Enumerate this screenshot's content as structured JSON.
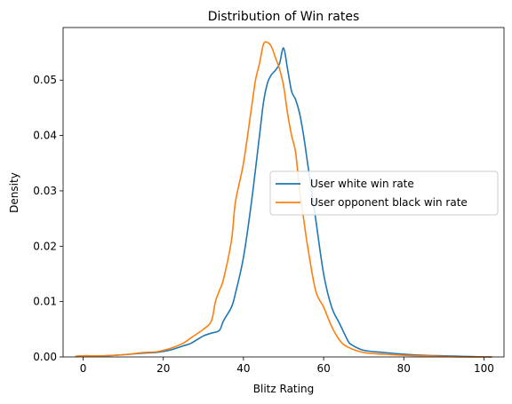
{
  "chart_data": {
    "type": "line",
    "title": "Distribution of Win rates",
    "xlabel": "Blitz Rating",
    "ylabel": "Density",
    "xlim": [
      -5,
      105
    ],
    "ylim": [
      0,
      0.0595
    ],
    "xticks": [
      0,
      20,
      40,
      60,
      80,
      100
    ],
    "yticks": [
      0,
      0.01,
      0.02,
      0.03,
      0.04,
      0.05
    ],
    "ytick_labels": [
      "0.00",
      "0.01",
      "0.02",
      "0.03",
      "0.04",
      "0.05"
    ],
    "grid": false,
    "legend_position": "right",
    "series": [
      {
        "name": "User white win rate",
        "color": "#1f77b4",
        "x": [
          -2,
          0,
          5,
          10,
          15,
          18,
          20,
          22,
          25,
          27,
          30,
          32,
          34,
          35,
          37,
          38,
          40,
          42,
          44,
          45,
          46,
          47,
          48,
          49,
          50,
          51,
          52,
          53,
          54,
          55,
          56,
          57,
          58,
          60,
          62,
          64,
          66,
          67,
          70,
          75,
          80,
          85,
          90,
          95,
          100,
          102
        ],
        "values": [
          0.0001,
          0.0002,
          0.0002,
          0.0004,
          0.0007,
          0.0008,
          0.001,
          0.0013,
          0.002,
          0.0025,
          0.0038,
          0.0043,
          0.0048,
          0.0065,
          0.009,
          0.0115,
          0.018,
          0.028,
          0.04,
          0.046,
          0.0495,
          0.051,
          0.0518,
          0.053,
          0.0558,
          0.052,
          0.048,
          0.0465,
          0.044,
          0.04,
          0.035,
          0.03,
          0.025,
          0.015,
          0.009,
          0.006,
          0.003,
          0.0022,
          0.0012,
          0.0008,
          0.0005,
          0.0003,
          0.0002,
          0.0001,
          0.0,
          0.0
        ]
      },
      {
        "name": "User opponent black win rate",
        "color": "#ff7f0e",
        "x": [
          -2,
          0,
          5,
          10,
          15,
          18,
          20,
          22,
          25,
          27,
          30,
          32,
          33,
          34,
          35,
          37,
          38,
          40,
          42,
          43,
          44,
          45,
          46,
          47,
          48,
          49,
          50,
          51,
          52,
          53,
          54,
          55,
          56,
          58,
          60,
          62,
          64,
          66,
          70,
          75,
          80,
          85,
          90,
          95,
          100,
          102
        ],
        "values": [
          0.0001,
          0.0002,
          0.0002,
          0.0004,
          0.0008,
          0.0009,
          0.0012,
          0.0016,
          0.0025,
          0.0035,
          0.005,
          0.0065,
          0.01,
          0.012,
          0.014,
          0.021,
          0.028,
          0.035,
          0.045,
          0.05,
          0.053,
          0.0565,
          0.0568,
          0.056,
          0.054,
          0.052,
          0.049,
          0.044,
          0.04,
          0.037,
          0.03,
          0.025,
          0.02,
          0.012,
          0.009,
          0.0055,
          0.003,
          0.0018,
          0.0008,
          0.0005,
          0.0003,
          0.0002,
          0.0001,
          0.0,
          0.0,
          0.0
        ]
      }
    ]
  }
}
